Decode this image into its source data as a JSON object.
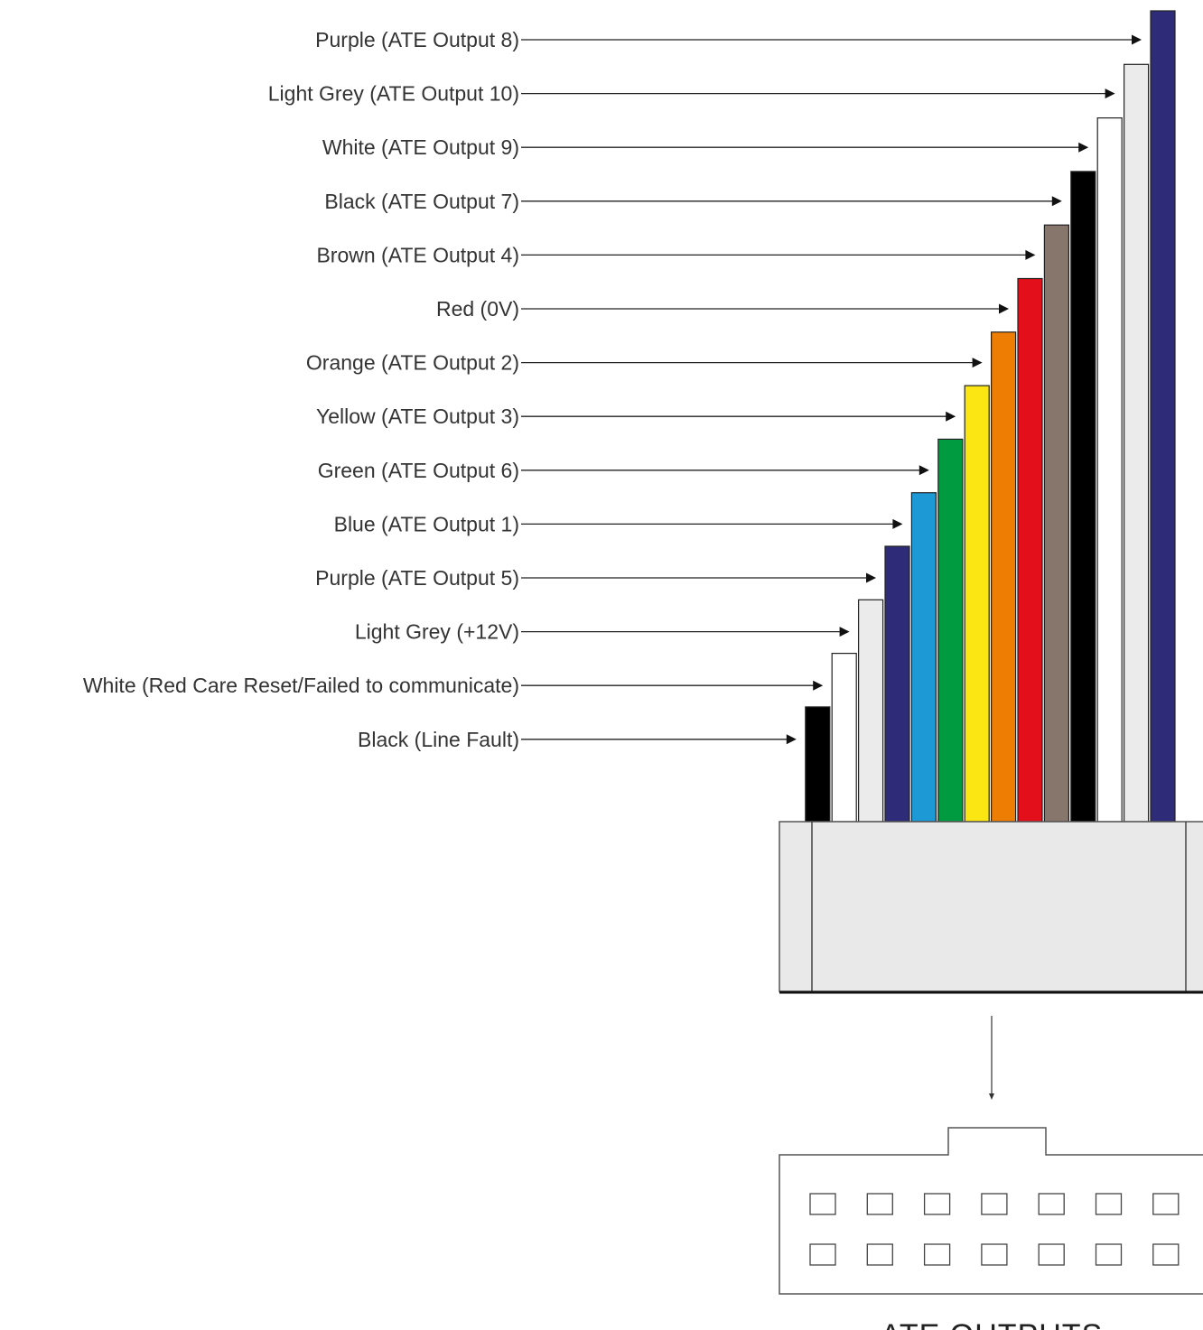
{
  "wires": [
    {
      "label": "Purple (ATE Output 8)",
      "color": "#2e2c78"
    },
    {
      "label": "Light Grey (ATE Output 10)",
      "color": "#ebebeb"
    },
    {
      "label": "White (ATE Output 9)",
      "color": "#ffffff"
    },
    {
      "label": "Black (ATE Output 7)",
      "color": "#000000"
    },
    {
      "label": "Brown (ATE Output 4)",
      "color": "#86766c"
    },
    {
      "label": "Red (0V)",
      "color": "#e3101b"
    },
    {
      "label": "Orange (ATE Output 2)",
      "color": "#ee7d04"
    },
    {
      "label": "Yellow (ATE Output 3)",
      "color": "#fbe512"
    },
    {
      "label": "Green (ATE Output 6)",
      "color": "#009b40"
    },
    {
      "label": "Blue (ATE Output 1)",
      "color": "#1d9ad6"
    },
    {
      "label": "Purple (ATE Output 5)",
      "color": "#2e2c78"
    },
    {
      "label": "Light Grey (+12V)",
      "color": "#ebebeb"
    },
    {
      "label": "White (Red Care Reset/Failed to communicate)",
      "color": "#ffffff"
    },
    {
      "label": "Black (Line Fault)",
      "color": "#000000"
    }
  ],
  "connector": {
    "body_color": "#e9e9e9",
    "title": "ATE OUTPUTS",
    "pin_rows": 2,
    "pin_columns": 7
  }
}
